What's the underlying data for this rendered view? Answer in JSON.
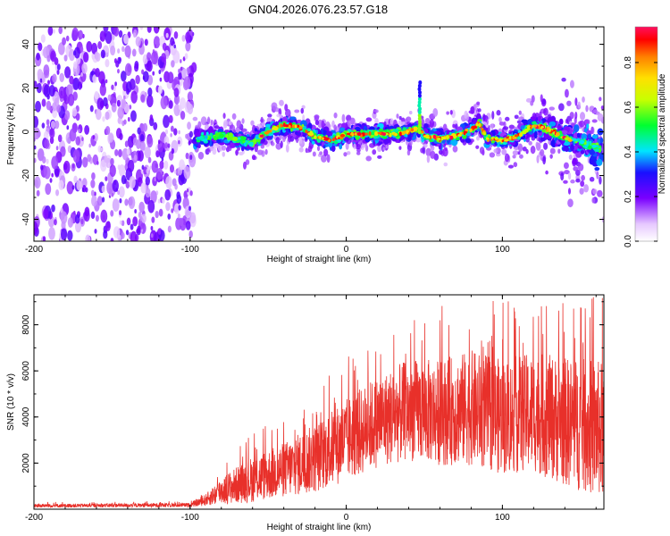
{
  "title": "GN04.2026.076.23.57.G18",
  "chart_data": [
    {
      "type": "heatmap",
      "name": "spectrogram",
      "xlabel": "Height of straight line (km)",
      "ylabel": "Frequency (Hz)",
      "xlim": [
        -200,
        165
      ],
      "ylim": [
        -50,
        48
      ],
      "xticks": [
        -200,
        -100,
        0,
        100
      ],
      "yticks": [
        -40,
        -20,
        0,
        20,
        40
      ],
      "noise_region_x": [
        -200,
        -100
      ],
      "signal_start_x": -97,
      "ridge": {
        "x": [
          -97,
          -80,
          -60,
          -50,
          -40,
          -30,
          -20,
          -10,
          0,
          10,
          20,
          30,
          40,
          46,
          50,
          60,
          70,
          80,
          85,
          90,
          100,
          110,
          120,
          130,
          140,
          150,
          160,
          165
        ],
        "y": [
          -3,
          -2,
          -5,
          0,
          3,
          2,
          -2,
          -4,
          -1,
          -1,
          -1,
          -1,
          0,
          2,
          -2,
          -3,
          -2,
          1,
          4,
          -3,
          -4,
          -2,
          3,
          1,
          -3,
          -5,
          -7,
          -8
        ]
      },
      "spike": {
        "x": 47,
        "y_top": 23
      },
      "colorbar": {
        "label": "Normalized spectral amplitude",
        "ticks": [
          0.0,
          0.2,
          0.4,
          0.6,
          0.8
        ],
        "range": [
          0,
          0.96
        ]
      }
    },
    {
      "type": "line",
      "name": "snr",
      "xlabel": "Height of straight line (km)",
      "ylabel": "SNR (10 * v/v)",
      "xlim": [
        -200,
        165
      ],
      "ylim": [
        0,
        9300
      ],
      "xticks": [
        -200,
        -100,
        0,
        100
      ],
      "yticks": [
        2000,
        4000,
        6000,
        8000
      ],
      "color": "#e8302a",
      "envelope": {
        "x": [
          -200,
          -100,
          -90,
          -80,
          -60,
          -40,
          -20,
          0,
          20,
          40,
          60,
          80,
          100,
          120,
          140,
          160,
          165
        ],
        "mean": [
          150,
          180,
          400,
          800,
          1300,
          1700,
          2200,
          3000,
          3800,
          4300,
          4200,
          4400,
          4000,
          4200,
          3800,
          3500,
          3400
        ],
        "spread": [
          80,
          90,
          250,
          600,
          1000,
          1200,
          1500,
          1800,
          2000,
          2200,
          2300,
          2500,
          2500,
          2600,
          2800,
          3000,
          3000
        ]
      },
      "max_value": 9200
    }
  ]
}
